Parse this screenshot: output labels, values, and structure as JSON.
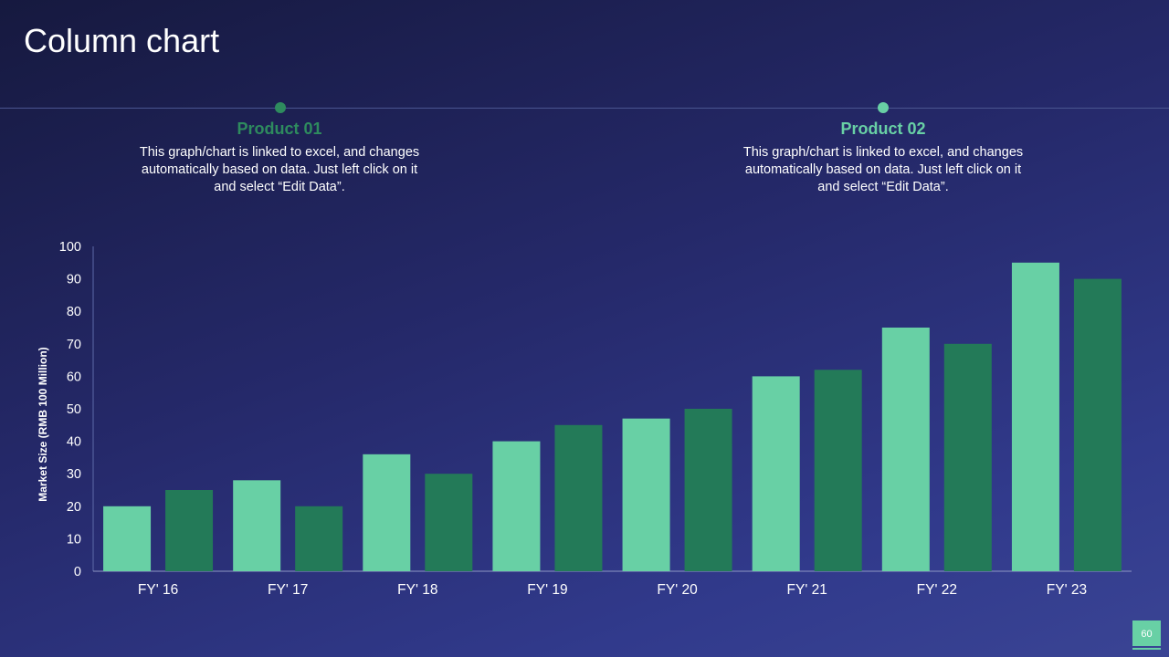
{
  "slide": {
    "title": "Column chart",
    "page_number": "60"
  },
  "legend": [
    {
      "name": "Product 01",
      "description": "This graph/chart is linked to excel, and changes automatically based on data. Just left click on it and select “Edit Data”.",
      "color": "#2e8b5e"
    },
    {
      "name": "Product 02",
      "description": "This graph/chart is linked to excel, and changes automatically based on data. Just left click on it and select “Edit Data”.",
      "color": "#68d0a5"
    }
  ],
  "chart_data": {
    "type": "bar",
    "title": "",
    "xlabel": "",
    "ylabel": "Market Size (RMB 100 Million)",
    "categories": [
      "FY' 16",
      "FY' 17",
      "FY' 18",
      "FY' 19",
      "FY' 20",
      "FY' 21",
      "FY' 22",
      "FY' 23"
    ],
    "series": [
      {
        "color": "#68d0a5",
        "values": [
          20,
          28,
          36,
          40,
          47,
          60,
          75,
          95
        ]
      },
      {
        "color": "#237a58",
        "values": [
          25,
          20,
          30,
          45,
          50,
          62,
          70,
          90
        ]
      }
    ],
    "ylim": [
      0,
      100
    ],
    "yticks": [
      0,
      10,
      20,
      30,
      40,
      50,
      60,
      70,
      80,
      90,
      100
    ],
    "grid": false,
    "legend": "top"
  }
}
